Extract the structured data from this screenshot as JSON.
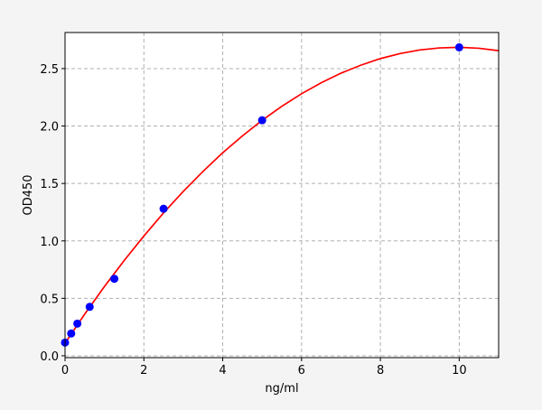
{
  "chart_data": {
    "type": "scatter",
    "title": "",
    "xlabel": "ng/ml",
    "ylabel": "OD450",
    "xlim": [
      0,
      11
    ],
    "ylim": [
      -0.016,
      2.814
    ],
    "xticks": [
      0,
      2,
      4,
      6,
      8,
      10
    ],
    "yticks": [
      0.0,
      0.5,
      1.0,
      1.5,
      2.0,
      2.5
    ],
    "xtick_labels": [
      "0",
      "2",
      "4",
      "6",
      "8",
      "10"
    ],
    "ytick_labels": [
      "0.0",
      "0.5",
      "1.0",
      "1.5",
      "2.0",
      "2.5"
    ],
    "grid": true,
    "series": [
      {
        "type": "scatter",
        "color": "#0000ff",
        "x": [
          0,
          0.156,
          0.3125,
          0.625,
          1.25,
          2.5,
          5,
          10
        ],
        "y": [
          0.115,
          0.194,
          0.28,
          0.426,
          0.67,
          1.28,
          2.05,
          2.685
        ]
      },
      {
        "type": "line",
        "color": "#ff0000",
        "x": [
          0,
          0.5,
          1,
          1.5,
          2,
          2.5,
          3,
          3.5,
          4,
          4.5,
          5,
          5.5,
          6,
          6.5,
          7,
          7.5,
          8,
          8.5,
          9,
          9.5,
          10,
          10.5,
          11
        ],
        "y": [
          0.11,
          0.363,
          0.603,
          0.829,
          1.043,
          1.244,
          1.431,
          1.605,
          1.767,
          1.914,
          2.05,
          2.172,
          2.281,
          2.377,
          2.46,
          2.529,
          2.587,
          2.631,
          2.662,
          2.68,
          2.685,
          2.677,
          2.656
        ]
      }
    ]
  }
}
